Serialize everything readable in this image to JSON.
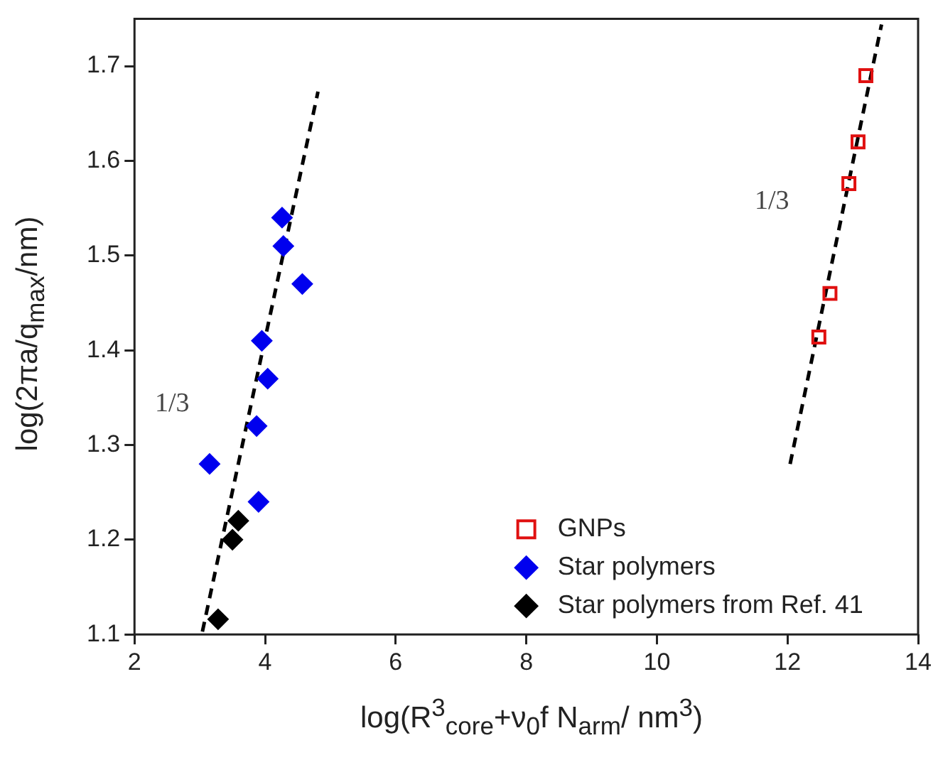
{
  "chart_data": {
    "type": "scatter",
    "xlabel": "log(R$^{3}$$_{core}$+ν$_{0}$f N$_{arm}$/ nm$^{3}$)",
    "ylabel": "log(2πa/q$_{max}$/nm)",
    "xlim": [
      2,
      14
    ],
    "xticks": [
      2,
      4,
      6,
      8,
      10,
      12,
      14
    ],
    "ylim": [
      1.1,
      1.75
    ],
    "yticks": [
      1.1,
      1.2,
      1.3,
      1.4,
      1.5,
      1.6,
      1.7
    ],
    "grid": false,
    "legend": "bottom right",
    "series": [
      {
        "name": "GNPs",
        "color": "#e01010",
        "marker": "square",
        "x": [
          13.2,
          13.08,
          12.94,
          12.65,
          12.48
        ],
        "values": [
          1.69,
          1.62,
          1.576,
          1.46,
          1.414
        ]
      },
      {
        "name": "Star polymers",
        "color": "#0000ee",
        "marker": "diamond",
        "x": [
          3.15,
          4.26,
          4.28,
          4.57,
          3.95,
          4.04,
          3.87,
          3.9
        ],
        "values": [
          1.28,
          1.54,
          1.51,
          1.47,
          1.41,
          1.37,
          1.32,
          1.24
        ]
      },
      {
        "name": "Star polymers from Ref. 41",
        "color": "#000000",
        "marker": "diamond",
        "x": [
          3.28,
          3.5,
          3.59
        ],
        "values": [
          1.116,
          1.2,
          1.22
        ]
      },
      {
        "type": "line",
        "color": "#000000",
        "line_style": "dashed",
        "marker": "none",
        "x": [
          3.04,
          4.81
        ],
        "values": [
          1.103,
          1.673
        ]
      },
      {
        "type": "line",
        "color": "#000000",
        "line_style": "dashed",
        "marker": "none",
        "x": [
          12.04,
          13.44
        ],
        "values": [
          1.28,
          1.744
        ]
      }
    ],
    "annotations": [
      "1/3",
      "1/3"
    ]
  }
}
